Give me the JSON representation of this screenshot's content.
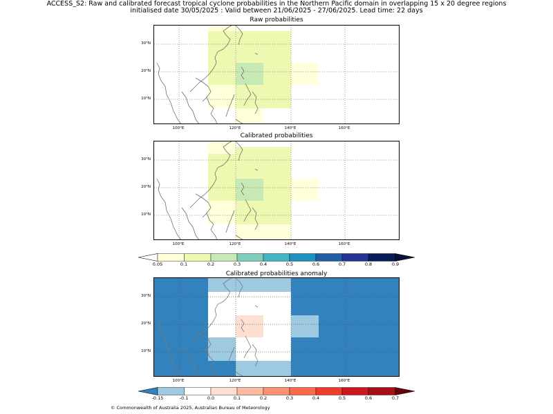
{
  "title": {
    "line1": "ACCESS_S2: Raw and calibrated forecast tropical cyclone probabilities in the Northern Pacific domain in overlapping 15 x 20 degree regions",
    "line2": "initialised date 30/05/2025 :  Valid between 21/06/2025 - 27/06/2025. Lead time: 22 days"
  },
  "panels": [
    {
      "title": "Raw probabilities"
    },
    {
      "title": "Calibrated probabilities"
    },
    {
      "title": "Calibrated probabilities anomaly"
    }
  ],
  "axes": {
    "lat_ticks": [
      "30°N",
      "20°N",
      "10°N"
    ],
    "lon_ticks": [
      "100°E",
      "120°E",
      "140°E",
      "160°E"
    ]
  },
  "colorbar_prob": {
    "ticks": [
      "0.05",
      "0.1",
      "0.2",
      "0.3",
      "0.4",
      "0.5",
      "0.6",
      "0.7",
      "0.8",
      "0.9"
    ],
    "colors": [
      "#ffffd9",
      "#edf8b1",
      "#c7e9b4",
      "#7fcdbb",
      "#41b6c4",
      "#1d91c0",
      "#225ea8",
      "#253494",
      "#081d58"
    ],
    "under_color": "#ffffff",
    "over_color": "#08113a"
  },
  "colorbar_anom": {
    "ticks": [
      "-0.15",
      "-0.1",
      "0.0",
      "0.1",
      "0.2",
      "0.3",
      "0.4",
      "0.5",
      "0.6",
      "0.7"
    ],
    "colors": [
      "#9ecae1",
      "#ffffff",
      "#fee0d2",
      "#fcbba1",
      "#fc9272",
      "#fb6a4a",
      "#ef3b2c",
      "#cb181d",
      "#a50f15"
    ],
    "under_color": "#3182bd",
    "over_color": "#67000d"
  },
  "footer": "© Commonwealth of Australia 2025, Australian Bureau of Meteorology"
}
